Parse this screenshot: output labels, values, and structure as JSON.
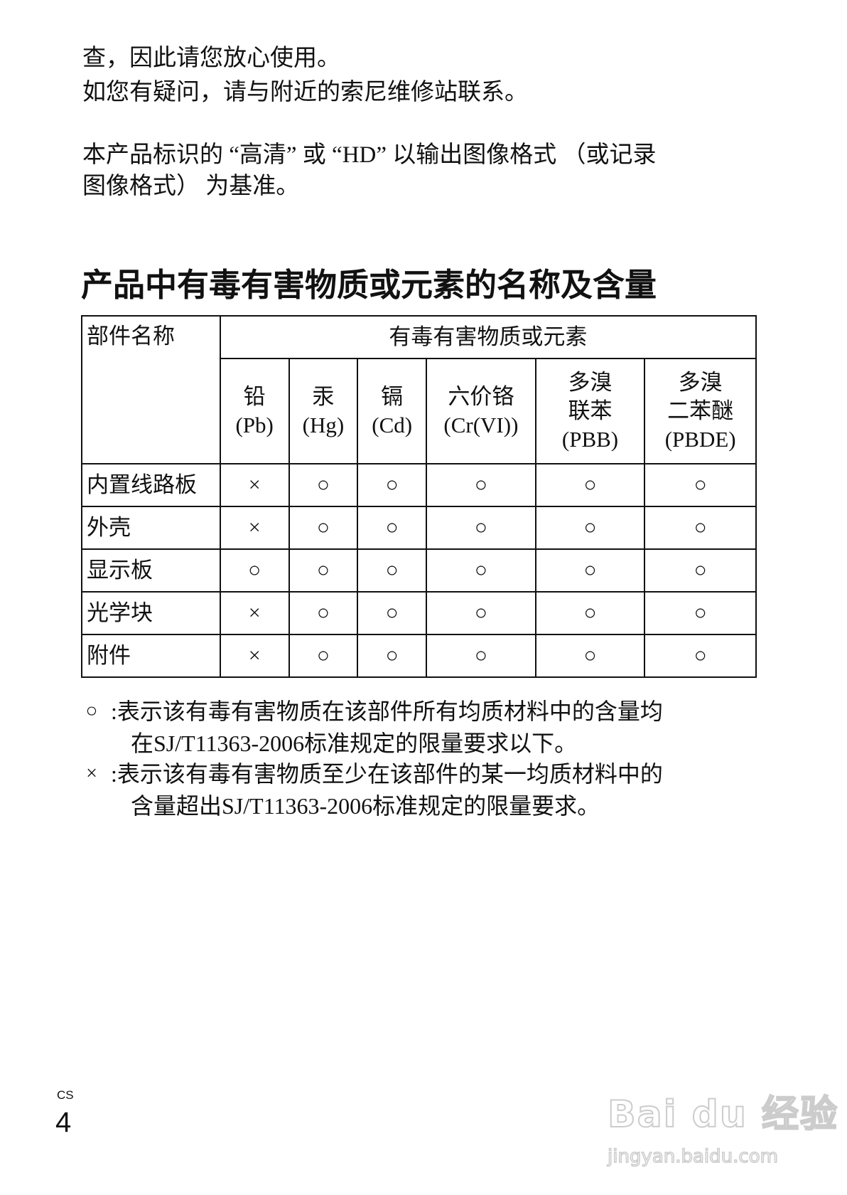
{
  "intro": {
    "lines": [
      "查，因此请您放心使用。",
      "如您有疑问，请与附近的索尼维修站联系。",
      "本产品标识的 “高清” 或 “HD” 以输出图像格式 （或记录",
      "图像格式） 为基准。"
    ]
  },
  "section_title": "产品中有毒有害物质或元素的名称及含量",
  "table": {
    "part_header": "部件名称",
    "group_header": "有毒有害物质或元素",
    "columns": [
      {
        "name": "铅",
        "sub": "",
        "symbol": "(Pb)"
      },
      {
        "name": "汞",
        "sub": "",
        "symbol": "(Hg)"
      },
      {
        "name": "镉",
        "sub": "",
        "symbol": "(Cd)"
      },
      {
        "name": "六价铬",
        "sub": "",
        "symbol": "(Cr(VI))"
      },
      {
        "name": "多溴",
        "sub": "联苯",
        "symbol": "(PBB)"
      },
      {
        "name": "多溴",
        "sub": "二苯醚",
        "symbol": "(PBDE)"
      }
    ],
    "rows": [
      {
        "part": "内置线路板",
        "values": [
          "×",
          "○",
          "○",
          "○",
          "○",
          "○"
        ]
      },
      {
        "part": "外壳",
        "values": [
          "×",
          "○",
          "○",
          "○",
          "○",
          "○"
        ]
      },
      {
        "part": "显示板",
        "values": [
          "○",
          "○",
          "○",
          "○",
          "○",
          "○"
        ]
      },
      {
        "part": "光学块",
        "values": [
          "×",
          "○",
          "○",
          "○",
          "○",
          "○"
        ]
      },
      {
        "part": "附件",
        "values": [
          "×",
          "○",
          "○",
          "○",
          "○",
          "○"
        ]
      }
    ]
  },
  "notes": [
    {
      "symbol": "○",
      "lines": [
        ":表示该有毒有害物质在该部件所有均质材料中的含量均",
        "在SJ/T11363-2006标准规定的限量要求以下。"
      ]
    },
    {
      "symbol": "×",
      "lines": [
        ":表示该有毒有害物质至少在该部件的某一均质材料中的",
        "含量超出SJ/T11363-2006标准规定的限量要求。"
      ]
    }
  ],
  "page": {
    "lang": "CS",
    "number": "4"
  },
  "watermark": {
    "brand": "Bai du 经验",
    "url": "jingyan.baidu.com"
  }
}
